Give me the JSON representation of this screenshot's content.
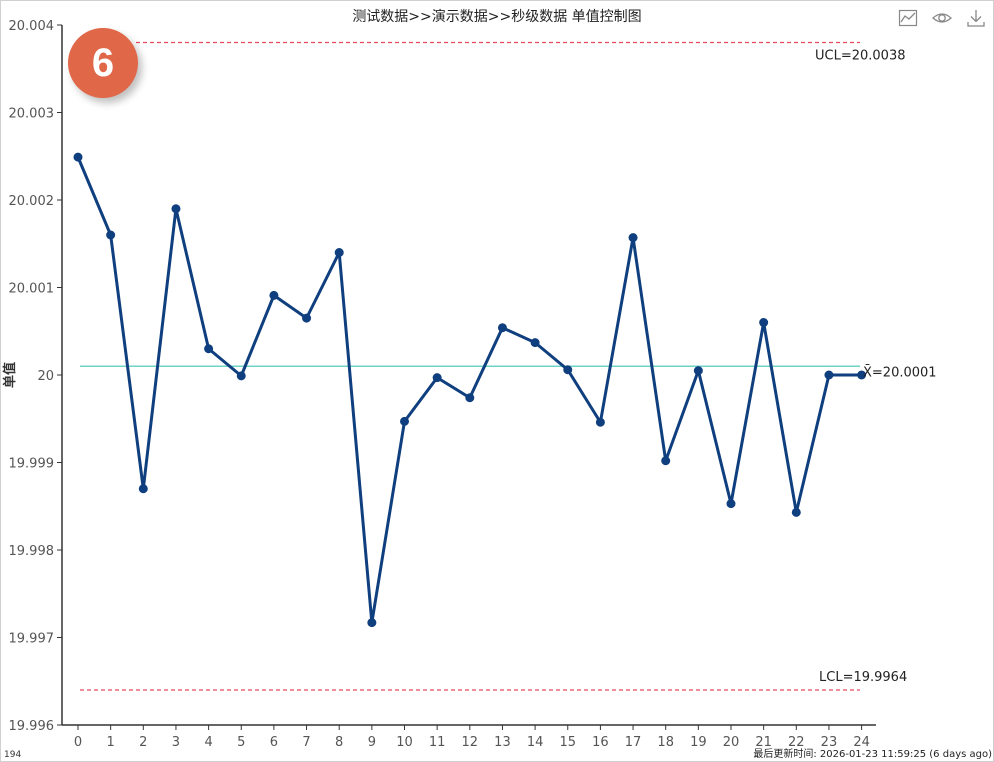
{
  "title": "测试数据>>演示数据>>秒级数据 单值控制图",
  "badge": "6",
  "footer": {
    "left": "194",
    "updated": "最后更新时间: 2026-01-23 11:59:25 (6 days ago)"
  },
  "toolbar": {
    "icons": [
      "line-chart-icon",
      "eye-icon",
      "download-icon"
    ]
  },
  "colors": {
    "series": "#0f3f7e",
    "center": "#6fd3c8",
    "limits": "#e8495a",
    "badge": "#e06748"
  },
  "chart_data": {
    "type": "line",
    "title": "测试数据>>演示数据>>秒级数据 单值控制图",
    "ylabel": "单值",
    "xlabel": "",
    "ylim": [
      19.996,
      20.004
    ],
    "yticks": [
      "19.996",
      "19.997",
      "19.998",
      "19.999",
      "20",
      "20.001",
      "20.002",
      "20.003",
      "20.004"
    ],
    "x": [
      0,
      1,
      2,
      3,
      4,
      5,
      6,
      7,
      8,
      9,
      10,
      11,
      12,
      13,
      14,
      15,
      16,
      17,
      18,
      19,
      20,
      21,
      22,
      23,
      24
    ],
    "series": [
      {
        "values": [
          20.00249,
          20.0016,
          19.9987,
          20.0019,
          20.0003,
          19.99999,
          20.00091,
          20.00065,
          20.0014,
          19.99717,
          19.99947,
          19.99997,
          19.99974,
          20.00054,
          20.00037,
          20.00006,
          19.99946,
          20.00157,
          19.99902,
          20.00005,
          19.99853,
          20.0006,
          19.99843,
          20.0,
          20.0
        ]
      }
    ],
    "control_lines": {
      "ucl": {
        "value": 20.0038,
        "label": "UCL=20.0038"
      },
      "center": {
        "value": 20.0001,
        "label": "X̄=20.0001"
      },
      "lcl": {
        "value": 19.9964,
        "label": "LCL=19.9964"
      }
    },
    "grid": false,
    "legend": "none"
  }
}
